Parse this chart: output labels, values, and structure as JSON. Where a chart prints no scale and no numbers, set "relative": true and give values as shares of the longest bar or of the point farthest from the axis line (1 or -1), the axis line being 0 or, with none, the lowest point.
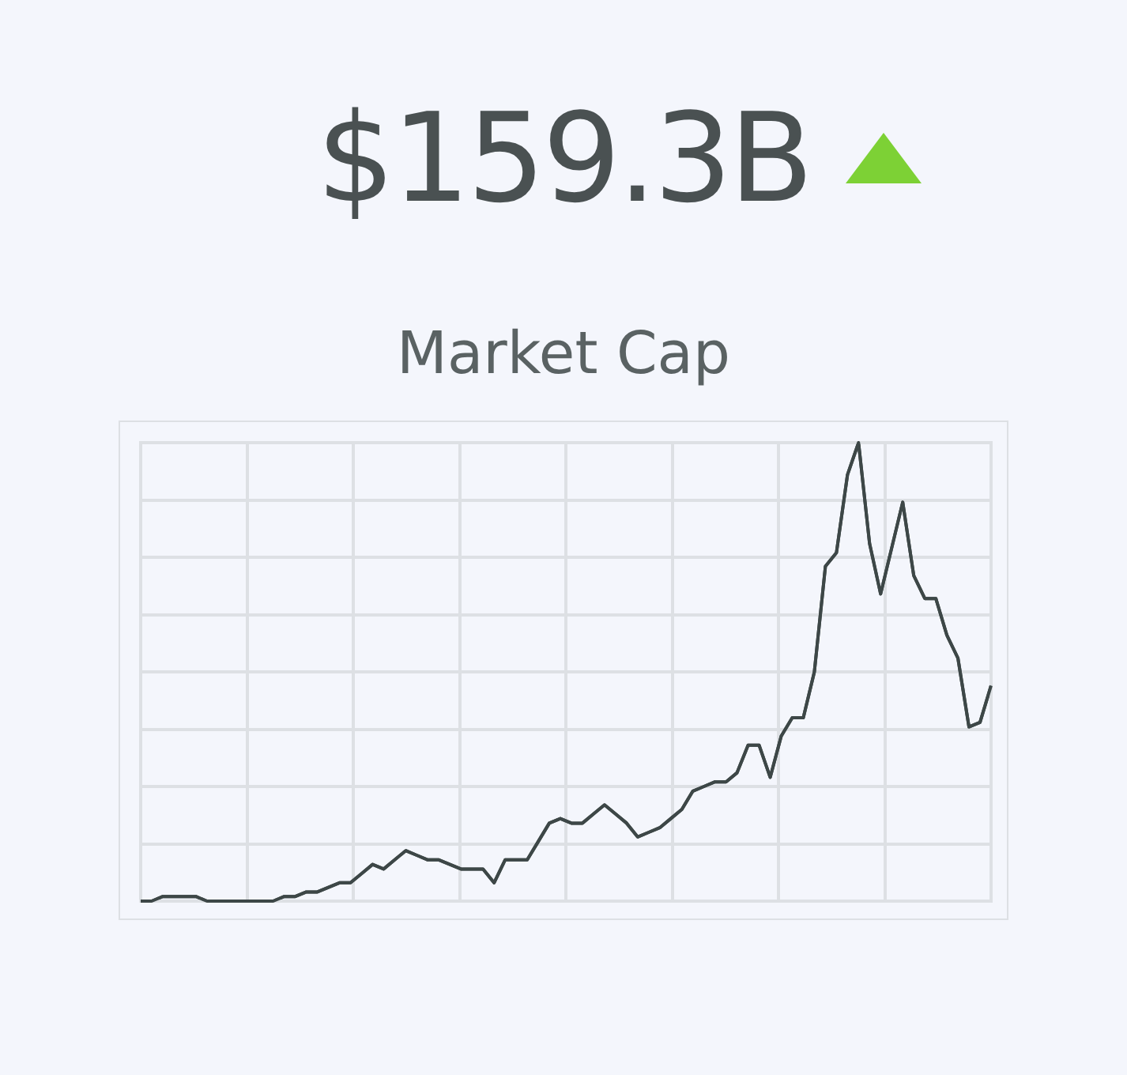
{
  "chart_data": {
    "type": "line",
    "title": "$159.3B",
    "subtitle": "Market Cap",
    "relative": true,
    "grid": true,
    "legend": false,
    "marker": "none",
    "line_style": "solid",
    "categories": [
      null,
      null,
      null,
      null,
      null,
      null,
      null,
      null,
      null,
      null,
      null,
      null,
      null,
      null,
      null,
      null,
      null,
      null,
      null,
      null,
      null,
      null,
      null,
      null,
      null,
      null,
      null,
      null,
      null,
      null,
      null,
      null,
      null,
      null,
      null,
      null,
      null,
      null,
      null,
      null,
      null,
      null,
      null,
      null,
      null,
      null,
      null,
      null,
      null,
      null,
      null,
      null,
      null,
      null,
      null,
      null,
      null,
      null,
      null,
      null,
      null,
      null,
      null,
      null,
      null,
      null,
      null,
      null,
      null,
      null,
      null,
      null,
      null,
      null,
      null,
      null,
      null,
      null
    ],
    "series": [
      {
        "color": "#3d4747",
        "values": [
          0,
          0,
          0.01,
          0.01,
          0.01,
          0.01,
          0,
          0,
          0,
          0,
          0,
          0,
          0,
          0.01,
          0.01,
          0.02,
          0.02,
          0.03,
          0.04,
          0.04,
          0.06,
          0.08,
          0.07,
          0.09,
          0.11,
          0.1,
          0.09,
          0.09,
          0.08,
          0.07,
          0.07,
          0.07,
          0.04,
          0.09,
          0.09,
          0.09,
          0.13,
          0.17,
          0.18,
          0.17,
          0.17,
          0.19,
          0.21,
          0.19,
          0.17,
          0.14,
          0.15,
          0.16,
          0.18,
          0.2,
          0.24,
          0.25,
          0.26,
          0.26,
          0.28,
          0.34,
          0.34,
          0.27,
          0.36,
          0.4,
          0.4,
          0.5,
          0.73,
          0.76,
          0.93,
          1,
          0.78,
          0.67,
          0.77,
          0.87,
          0.71,
          0.66,
          0.66,
          0.58,
          0.53,
          0.38,
          0.39,
          0.47
        ]
      }
    ]
  }
}
